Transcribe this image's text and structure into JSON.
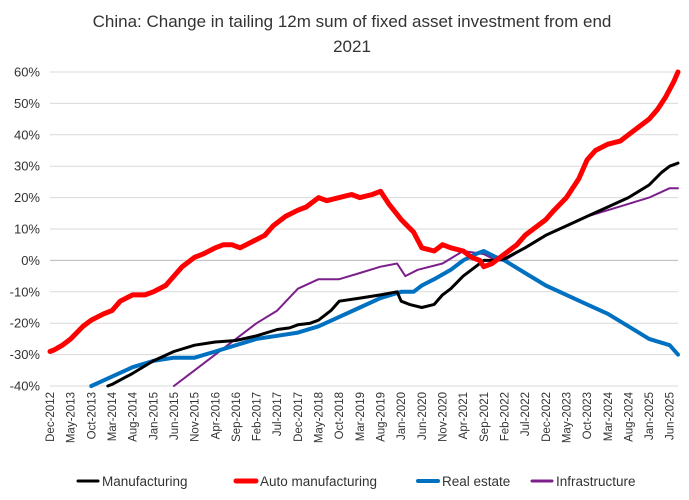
{
  "chart_data": {
    "type": "line",
    "title": "China: Change in tailing 12m sum of fixed asset investment from end 2021",
    "title_lines": [
      "China: Change in tailing 12m sum of fixed asset investment from end",
      "2021"
    ],
    "xlabel": "",
    "ylabel": "",
    "ylim": [
      -40,
      60
    ],
    "y_ticks": [
      60,
      50,
      40,
      30,
      20,
      10,
      0,
      -10,
      -20,
      -30,
      -40
    ],
    "y_tick_labels": [
      "60%",
      "50%",
      "40%",
      "30%",
      "20%",
      "10%",
      "0%",
      "-10%",
      "-20%",
      "-30%",
      "-40%"
    ],
    "x_ticks": [
      "Dec-2012",
      "May-2013",
      "Oct-2013",
      "Mar-2014",
      "Aug-2014",
      "Jan-2015",
      "Jun-2015",
      "Nov-2015",
      "Apr-2016",
      "Sep-2016",
      "Feb-2017",
      "Jul-2017",
      "Dec-2017",
      "May-2018",
      "Oct-2018",
      "Mar-2019",
      "Aug-2019",
      "Jan-2020",
      "Jun-2020",
      "Nov-2020",
      "Apr-2021",
      "Sep-2021",
      "Feb-2022",
      "Jul-2022",
      "Dec-2022",
      "May-2023",
      "Oct-2023",
      "Mar-2024",
      "Aug-2024",
      "Jan-2025",
      "Jun-2025"
    ],
    "grid": true,
    "legend_position": "bottom",
    "series": [
      {
        "name": "Manufacturing",
        "color": "#000000",
        "width": 3,
        "x": [
          "Feb-2014",
          "Mar-2014",
          "Aug-2014",
          "Jan-2015",
          "Jun-2015",
          "Nov-2015",
          "Apr-2016",
          "Sep-2016",
          "Feb-2017",
          "Jul-2017",
          "Oct-2017",
          "Dec-2017",
          "Mar-2018",
          "May-2018",
          "Aug-2018",
          "Oct-2018",
          "Mar-2019",
          "Aug-2019",
          "Dec-2019",
          "Jan-2020",
          "Mar-2020",
          "Jun-2020",
          "Sep-2020",
          "Nov-2020",
          "Jan-2021",
          "Apr-2021",
          "Jul-2021",
          "Sep-2021",
          "Dec-2021",
          "Feb-2022",
          "Jul-2022",
          "Dec-2022",
          "May-2023",
          "Oct-2023",
          "Mar-2024",
          "Aug-2024",
          "Jan-2025",
          "Apr-2025",
          "Jun-2025",
          "Aug-2025"
        ],
        "values": [
          -40,
          -39.5,
          -36,
          -32,
          -29,
          -27,
          -26,
          -25.5,
          -24,
          -22,
          -21.5,
          -20.5,
          -20,
          -19,
          -16,
          -13,
          -12,
          -11,
          -10,
          -13,
          -14,
          -15,
          -14,
          -11,
          -9,
          -5,
          -2,
          0,
          0,
          0.5,
          4,
          8,
          11,
          14,
          17,
          20,
          24,
          28,
          30,
          31
        ]
      },
      {
        "name": "Auto manufacturing",
        "color": "#ff0000",
        "width": 5,
        "x": [
          "Dec-2012",
          "Jan-2013",
          "Mar-2013",
          "May-2013",
          "Aug-2013",
          "Oct-2013",
          "Jan-2014",
          "Mar-2014",
          "May-2014",
          "Aug-2014",
          "Nov-2014",
          "Jan-2015",
          "Apr-2015",
          "Jun-2015",
          "Aug-2015",
          "Nov-2015",
          "Jan-2016",
          "Apr-2016",
          "Jun-2016",
          "Aug-2016",
          "Oct-2016",
          "Jan-2017",
          "Apr-2017",
          "Jun-2017",
          "Sep-2017",
          "Dec-2017",
          "Feb-2018",
          "May-2018",
          "Jul-2018",
          "Oct-2018",
          "Jan-2019",
          "Mar-2019",
          "Jun-2019",
          "Aug-2019",
          "Oct-2019",
          "Jan-2020",
          "Apr-2020",
          "Jun-2020",
          "Sep-2020",
          "Nov-2020",
          "Jan-2021",
          "Apr-2021",
          "Jun-2021",
          "Aug-2021",
          "Sep-2021",
          "Nov-2021",
          "Dec-2021",
          "Feb-2022",
          "May-2022",
          "Jul-2022",
          "Sep-2022",
          "Dec-2022",
          "Feb-2023",
          "May-2023",
          "Aug-2023",
          "Oct-2023",
          "Dec-2023",
          "Mar-2024",
          "Jun-2024",
          "Aug-2024",
          "Oct-2024",
          "Jan-2025",
          "Mar-2025",
          "May-2025",
          "Jul-2025",
          "Aug-2025"
        ],
        "values": [
          -29,
          -28.5,
          -27,
          -25,
          -21,
          -19,
          -17,
          -16,
          -13,
          -11,
          -11,
          -10,
          -8,
          -5,
          -2,
          1,
          2,
          4,
          5,
          5,
          4,
          6,
          8,
          11,
          14,
          16,
          17,
          20,
          19,
          20,
          21,
          20,
          21,
          22,
          18,
          13,
          9,
          4,
          3,
          5,
          4,
          3,
          1,
          0,
          -2,
          -1,
          0,
          2,
          5,
          8,
          10,
          13,
          16,
          20,
          26,
          32,
          35,
          37,
          38,
          40,
          42,
          45,
          48,
          52,
          57,
          60
        ]
      },
      {
        "name": "Real estate",
        "color": "#0070c0",
        "width": 4,
        "x": [
          "Oct-2013",
          "Mar-2014",
          "Aug-2014",
          "Jan-2015",
          "Jun-2015",
          "Nov-2015",
          "Apr-2016",
          "Sep-2016",
          "Feb-2017",
          "Jul-2017",
          "Dec-2017",
          "May-2018",
          "Oct-2018",
          "Mar-2019",
          "Aug-2019",
          "Jan-2020",
          "Apr-2020",
          "Jun-2020",
          "Sep-2020",
          "Jan-2021",
          "Apr-2021",
          "Jul-2021",
          "Sep-2021",
          "Dec-2021",
          "Feb-2022",
          "Jul-2022",
          "Dec-2022",
          "May-2023",
          "Oct-2023",
          "Mar-2024",
          "Aug-2024",
          "Jan-2025",
          "Jun-2025",
          "Aug-2025"
        ],
        "values": [
          -40,
          -37,
          -34,
          -32,
          -31,
          -31,
          -29,
          -27,
          -25,
          -24,
          -23,
          -21,
          -18,
          -15,
          -12,
          -10,
          -10,
          -8,
          -6,
          -3,
          0,
          2,
          3,
          1,
          0,
          -4,
          -8,
          -11,
          -14,
          -17,
          -21,
          -25,
          -27,
          -30
        ]
      },
      {
        "name": "Infrastructure",
        "color": "#7b1f8a",
        "width": 2,
        "x": [
          "Jun-2015",
          "Nov-2015",
          "Apr-2016",
          "Sep-2016",
          "Feb-2017",
          "Jul-2017",
          "Dec-2017",
          "May-2018",
          "Oct-2018",
          "Mar-2019",
          "Aug-2019",
          "Dec-2019",
          "Feb-2020",
          "May-2020",
          "Nov-2020",
          "Apr-2021",
          "Sep-2021",
          "Dec-2021",
          "Feb-2022",
          "Jul-2022",
          "Dec-2022",
          "May-2023",
          "Oct-2023",
          "Mar-2024",
          "Aug-2024",
          "Jan-2025",
          "Jun-2025",
          "Aug-2025"
        ],
        "values": [
          -40,
          -35,
          -30,
          -25,
          -20,
          -16,
          -9,
          -6,
          -6,
          -4,
          -2,
          -1,
          -5,
          -3,
          -1,
          3,
          2,
          0,
          0,
          4,
          8,
          11,
          14,
          16,
          18,
          20,
          23,
          23
        ]
      }
    ]
  }
}
